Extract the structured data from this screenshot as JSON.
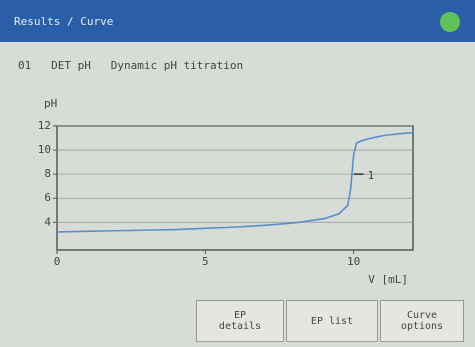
{
  "header": {
    "title": "Results / Curve"
  },
  "subtitle": "01   DET pH   Dynamic pH titration",
  "chart_data": {
    "type": "line",
    "ylabel": "pH",
    "xlabel": "V [mL]",
    "x": [
      0,
      1,
      2,
      3,
      4,
      5,
      6,
      7,
      8,
      9,
      9.5,
      9.8,
      9.9,
      10,
      10.1,
      10.3,
      10.6,
      11,
      11.5,
      12
    ],
    "series": [
      {
        "color": "#5b8fcb",
        "values": [
          3.2,
          3.25,
          3.3,
          3.35,
          3.4,
          3.5,
          3.6,
          3.75,
          3.95,
          4.3,
          4.7,
          5.4,
          6.8,
          9.6,
          10.6,
          10.8,
          11.0,
          11.2,
          11.35,
          11.45
        ]
      }
    ],
    "xlim": [
      0,
      12
    ],
    "ylim": [
      1.7,
      12
    ],
    "xticks": [
      0,
      5,
      10
    ],
    "yticks": [
      4,
      6,
      8,
      10,
      12
    ],
    "grid": true,
    "annotations": [
      {
        "x": 10,
        "y": 8,
        "label": "1"
      }
    ]
  },
  "buttons": [
    "EP\ndetails",
    "EP list",
    "Curve\noptions"
  ]
}
